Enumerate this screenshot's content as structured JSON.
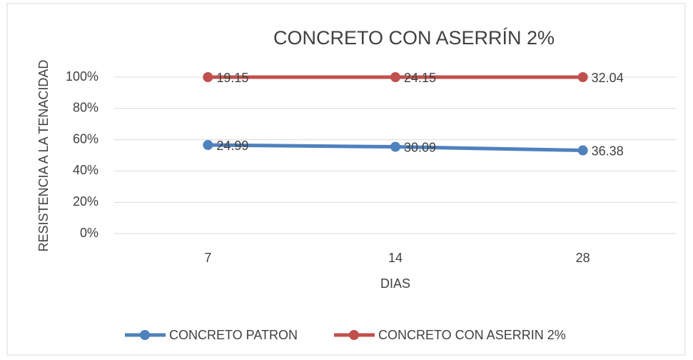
{
  "chart_data": {
    "type": "line",
    "stacking": "percent",
    "title": "CONCRETO CON ASERRÍN 2%",
    "x_label": "DIAS",
    "y_label": "RESISTENCIA A LA TENACIDAD",
    "categories": [
      "7",
      "14",
      "28"
    ],
    "series": [
      {
        "name": "CONCRETO PATRON",
        "color": "#4f81bd",
        "values": [
          24.99,
          30.09,
          36.38
        ]
      },
      {
        "name": "CONCRETO CON ASERRIN 2%",
        "color": "#c0504d",
        "values": [
          19.15,
          24.15,
          32.04
        ]
      }
    ],
    "ylim": [
      0,
      100
    ],
    "yticks": [
      {
        "value": 0,
        "label": "0%"
      },
      {
        "value": 20,
        "label": "20%"
      },
      {
        "value": 40,
        "label": "40%"
      },
      {
        "value": 60,
        "label": "60%"
      },
      {
        "value": 80,
        "label": "80%"
      },
      {
        "value": 100,
        "label": "100%"
      }
    ],
    "grid": true,
    "legend": "bottom"
  }
}
